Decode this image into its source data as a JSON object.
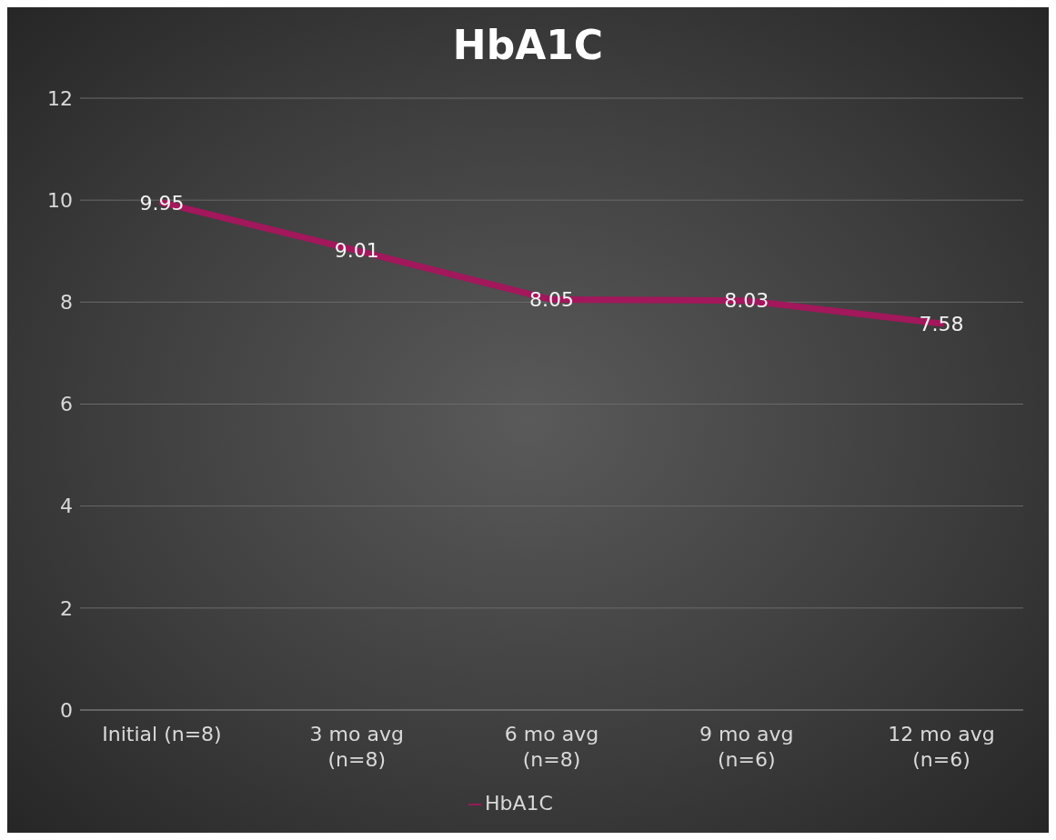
{
  "chart_data": {
    "type": "line",
    "title": "HbA1C",
    "categories": [
      "Initial (n=8)",
      "3 mo avg (n=8)",
      "6 mo avg (n=8)",
      "9 mo avg (n=6)",
      "12 mo avg (n=6)"
    ],
    "series": [
      {
        "name": "HbA1C",
        "color": "#a3175c",
        "values": [
          9.95,
          9.01,
          8.05,
          8.03,
          7.58
        ]
      }
    ],
    "ylim": [
      0,
      12
    ],
    "yticks": [
      0,
      2,
      4,
      6,
      8,
      10,
      12
    ],
    "grid": "y",
    "legend": "bottom",
    "data_labels": true,
    "marker": "none",
    "line_style": "solid"
  }
}
